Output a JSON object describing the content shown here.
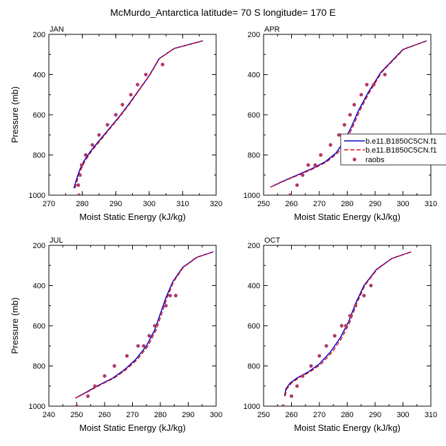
{
  "figure": {
    "title": "McMurdo_Antarctica  latitude= 70 S longitude= 170 E"
  },
  "legend": {
    "entries": [
      "b.e11.B1850C5CN.f1",
      "b.e11.B1850C5CN.f1",
      "raobs"
    ],
    "colors": [
      "#0000cc",
      "#dd1111",
      "#b03a6a"
    ]
  },
  "chart_data": [
    {
      "type": "line",
      "label": "JAN",
      "xlabel": "Moist Static Energy (kJ/kg)",
      "ylabel": "Pressure (mb)",
      "xlim": [
        270,
        320
      ],
      "ylim": [
        1000,
        200
      ],
      "xticks": [
        270,
        280,
        290,
        300,
        310,
        320
      ],
      "yticks": [
        200,
        400,
        600,
        800,
        1000
      ],
      "y_inverted": true,
      "series": [
        {
          "x": [
            277.5,
            278.3,
            279.2,
            280.5,
            282.5,
            285,
            288,
            291,
            294,
            297,
            300,
            303,
            307.5,
            316
          ],
          "y": [
            965,
            920,
            875,
            830,
            780,
            730,
            670,
            610,
            545,
            475,
            405,
            320,
            270,
            232
          ]
        },
        {
          "x": [
            277.8,
            278.6,
            279.5,
            280.8,
            282.8,
            285.3,
            288.2,
            291.2,
            294.2,
            297.1,
            300.1,
            303.1,
            307.5,
            316
          ],
          "y": [
            965,
            920,
            875,
            830,
            780,
            730,
            670,
            610,
            545,
            475,
            405,
            320,
            270,
            232
          ]
        }
      ],
      "obs": {
        "x": [
          279,
          278.8,
          279.3,
          279.8,
          281,
          283,
          285,
          287.5,
          290,
          292,
          294.5,
          296.5,
          299,
          304
        ],
        "y": [
          1000,
          950,
          900,
          850,
          800,
          750,
          700,
          650,
          600,
          550,
          500,
          450,
          400,
          350
        ]
      }
    },
    {
      "type": "line",
      "label": "APR",
      "xlabel": "Moist Static Energy (kJ/kg)",
      "ylabel": "",
      "xlim": [
        250,
        310
      ],
      "ylim": [
        1000,
        200
      ],
      "xticks": [
        250,
        260,
        270,
        280,
        290,
        300,
        310
      ],
      "yticks": [
        200,
        400,
        600,
        800,
        1000
      ],
      "y_inverted": true,
      "series": [
        {
          "x": [
            252.5,
            257,
            262,
            267,
            272,
            276,
            279,
            281.5,
            284,
            287.5,
            292,
            300,
            308.5
          ],
          "y": [
            960,
            930,
            900,
            870,
            835,
            790,
            730,
            660,
            580,
            490,
            390,
            275,
            232
          ]
        },
        {
          "x": [
            252.5,
            257.3,
            262.5,
            267.6,
            272.6,
            276.6,
            279.6,
            282,
            284.5,
            287.9,
            292.3,
            300.2,
            308.5
          ],
          "y": [
            960,
            930,
            900,
            870,
            835,
            790,
            730,
            660,
            580,
            490,
            390,
            275,
            232
          ]
        }
      ],
      "obs": {
        "x": [
          259.5,
          262,
          264,
          266,
          268.5,
          270.5,
          274,
          277,
          279,
          281,
          282.5,
          285,
          287,
          289.5,
          293.5
        ],
        "y": [
          1000,
          950,
          900,
          850,
          850,
          800,
          750,
          700,
          650,
          600,
          550,
          500,
          450,
          450,
          400
        ]
      }
    },
    {
      "type": "line",
      "label": "JUL",
      "xlabel": "Moist Static Energy (kJ/kg)",
      "ylabel": "Pressure (mb)",
      "xlim": [
        240,
        300
      ],
      "ylim": [
        1000,
        200
      ],
      "xticks": [
        240,
        250,
        260,
        270,
        280,
        290,
        300
      ],
      "yticks": [
        200,
        400,
        600,
        800,
        1000
      ],
      "y_inverted": true,
      "series": [
        {
          "x": [
            249.5,
            253.5,
            258,
            263,
            267,
            271,
            275,
            278,
            280,
            282,
            284.5,
            288,
            293,
            299
          ],
          "y": [
            960,
            930,
            895,
            860,
            820,
            770,
            700,
            620,
            540,
            460,
            380,
            310,
            260,
            232
          ]
        },
        {
          "x": [
            249.5,
            253.8,
            258.4,
            263.5,
            267.5,
            271.6,
            275.6,
            278.5,
            280.5,
            282.4,
            284.8,
            288.2,
            293.1,
            299
          ],
          "y": [
            960,
            930,
            895,
            860,
            820,
            770,
            700,
            620,
            540,
            460,
            380,
            310,
            260,
            232
          ]
        }
      ],
      "obs": {
        "x": [
          250,
          254,
          256.5,
          260,
          263.5,
          268,
          272,
          274,
          276,
          278,
          282,
          283.5,
          285.5
        ],
        "y": [
          1000,
          950,
          900,
          850,
          800,
          750,
          700,
          700,
          650,
          600,
          500,
          450,
          450
        ]
      }
    },
    {
      "type": "line",
      "label": "OCT",
      "xlabel": "Moist Static Energy (kJ/kg)",
      "ylabel": "",
      "xlim": [
        250,
        310
      ],
      "ylim": [
        1000,
        200
      ],
      "xticks": [
        250,
        260,
        270,
        280,
        290,
        300,
        310
      ],
      "yticks": [
        200,
        400,
        600,
        800,
        1000
      ],
      "y_inverted": true,
      "series": [
        {
          "x": [
            257.5,
            258,
            259.5,
            262,
            266,
            270,
            274,
            277.5,
            280.5,
            283,
            286,
            290.5,
            296,
            303
          ],
          "y": [
            950,
            915,
            885,
            860,
            830,
            790,
            730,
            660,
            580,
            490,
            400,
            320,
            265,
            232
          ]
        },
        {
          "x": [
            257.7,
            258.3,
            260,
            262.6,
            266.6,
            270.7,
            274.7,
            278.1,
            281,
            283.4,
            286.3,
            290.7,
            296.1,
            303
          ],
          "y": [
            950,
            915,
            885,
            860,
            830,
            790,
            730,
            660,
            580,
            490,
            400,
            320,
            265,
            232
          ]
        }
      ],
      "obs": {
        "x": [
          257,
          260,
          262,
          264,
          267,
          270,
          272.5,
          275.5,
          278,
          279.5,
          281,
          283,
          286,
          288.5
        ],
        "y": [
          1000,
          950,
          900,
          850,
          800,
          750,
          700,
          650,
          600,
          600,
          550,
          500,
          450,
          400
        ]
      }
    }
  ]
}
